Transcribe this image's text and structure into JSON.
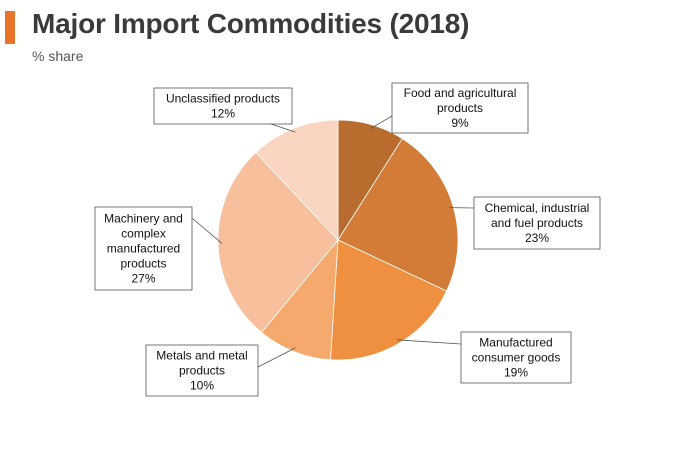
{
  "header": {
    "title": "Major Import Commodities (2018)",
    "subtitle": "% share",
    "accent_color": "#e8742a"
  },
  "chart_data": {
    "type": "pie",
    "title": "Major Import Commodities (2018)",
    "subtitle": "% share",
    "start_angle_deg": 0,
    "direction": "clockwise",
    "legend": "none",
    "slices": [
      {
        "label": [
          "Food and agricultural",
          "products"
        ],
        "value": 9,
        "value_label": "9%",
        "color": "#b86c2e"
      },
      {
        "label": [
          "Chemical, industrial",
          "and fuel products"
        ],
        "value": 23,
        "value_label": "23%",
        "color": "#d27c38"
      },
      {
        "label": [
          "Manufactured",
          "consumer goods"
        ],
        "value": 19,
        "value_label": "19%",
        "color": "#ee903f"
      },
      {
        "label": [
          "Metals and metal",
          "products"
        ],
        "value": 10,
        "value_label": "10%",
        "color": "#f6a96c"
      },
      {
        "label": [
          "Machinery and",
          "complex",
          "manufactured",
          "products"
        ],
        "value": 27,
        "value_label": "27%",
        "color": "#f8bf9c"
      },
      {
        "label": [
          "Unclassified products"
        ],
        "value": 12,
        "value_label": "12%",
        "color": "#f9d5c2"
      }
    ]
  }
}
